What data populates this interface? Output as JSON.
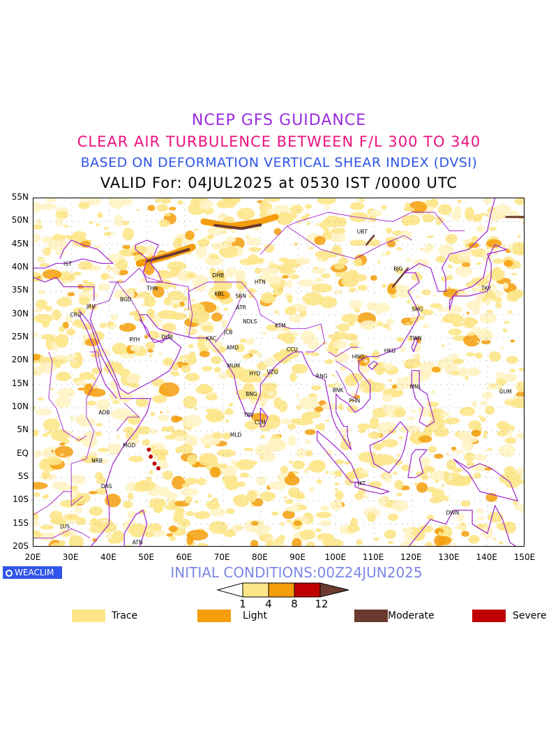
{
  "titles": {
    "line1": "NCEP GFS GUIDANCE",
    "line2": "CLEAR AIR TURBULENCE BETWEEN F/L 300 TO 340",
    "line3": "BASED ON DEFORMATION VERTICAL SHEAR INDEX (DVSI)",
    "line4": "VALID For: 04JUL2025 at 0530 IST /0000 UTC"
  },
  "map": {
    "lat_labels": [
      "55N",
      "50N",
      "45N",
      "40N",
      "35N",
      "30N",
      "25N",
      "20N",
      "15N",
      "10N",
      "5N",
      "EQ",
      "5S",
      "10S",
      "15S",
      "20S"
    ],
    "lon_labels": [
      "20E",
      "30E",
      "40E",
      "50E",
      "60E",
      "70E",
      "80E",
      "90E",
      "100E",
      "110E",
      "120E",
      "130E",
      "140E",
      "150E"
    ],
    "lat_range": [
      -20,
      55
    ],
    "lon_range": [
      20,
      150
    ],
    "grid": "dotted every 5°/10°",
    "stations": [
      {
        "code": "UBT",
        "lon": 106.9,
        "lat": 47.9
      },
      {
        "code": "BJG",
        "lon": 116.4,
        "lat": 39.9
      },
      {
        "code": "TKY",
        "lon": 139.7,
        "lat": 35.7
      },
      {
        "code": "SHG",
        "lon": 121.5,
        "lat": 31.2
      },
      {
        "code": "TWN",
        "lon": 121.0,
        "lat": 25.0
      },
      {
        "code": "HKG",
        "lon": 114.2,
        "lat": 22.3
      },
      {
        "code": "HNO",
        "lon": 105.8,
        "lat": 21.0
      },
      {
        "code": "IST",
        "lon": 29.0,
        "lat": 41.0
      },
      {
        "code": "THN",
        "lon": 51.4,
        "lat": 35.7
      },
      {
        "code": "BGD",
        "lon": 44.4,
        "lat": 33.3
      },
      {
        "code": "JRU",
        "lon": 35.2,
        "lat": 31.8
      },
      {
        "code": "CRO",
        "lon": 31.2,
        "lat": 30.0
      },
      {
        "code": "RYH",
        "lon": 46.7,
        "lat": 24.7
      },
      {
        "code": "DUB",
        "lon": 55.3,
        "lat": 25.2
      },
      {
        "code": "DHB",
        "lon": 68.8,
        "lat": 38.5
      },
      {
        "code": "HTN",
        "lon": 79.9,
        "lat": 37.1
      },
      {
        "code": "KBL",
        "lon": 69.2,
        "lat": 34.5
      },
      {
        "code": "SRN",
        "lon": 74.8,
        "lat": 34.1
      },
      {
        "code": "ATR",
        "lon": 74.9,
        "lat": 31.6
      },
      {
        "code": "JCB",
        "lon": 71.5,
        "lat": 26.3
      },
      {
        "code": "NDLS",
        "lon": 77.2,
        "lat": 28.6
      },
      {
        "code": "KTM",
        "lon": 85.3,
        "lat": 27.7
      },
      {
        "code": "KRC",
        "lon": 67.0,
        "lat": 24.9
      },
      {
        "code": "AMD",
        "lon": 72.6,
        "lat": 23.0
      },
      {
        "code": "CCU",
        "lon": 88.4,
        "lat": 22.6
      },
      {
        "code": "MUM",
        "lon": 72.9,
        "lat": 19.1
      },
      {
        "code": "HYD",
        "lon": 78.5,
        "lat": 17.4
      },
      {
        "code": "VZG",
        "lon": 83.2,
        "lat": 17.7
      },
      {
        "code": "RNG",
        "lon": 96.2,
        "lat": 16.8
      },
      {
        "code": "BNK",
        "lon": 100.5,
        "lat": 13.8
      },
      {
        "code": "PHN",
        "lon": 104.9,
        "lat": 11.6
      },
      {
        "code": "MNL",
        "lon": 121.0,
        "lat": 14.6
      },
      {
        "code": "GUM",
        "lon": 144.8,
        "lat": 13.5
      },
      {
        "code": "BNG",
        "lon": 77.6,
        "lat": 13.0
      },
      {
        "code": "TRV",
        "lon": 76.9,
        "lat": 8.5
      },
      {
        "code": "CLM",
        "lon": 79.9,
        "lat": 6.9
      },
      {
        "code": "MLD",
        "lon": 73.5,
        "lat": 4.2
      },
      {
        "code": "ADB",
        "lon": 38.7,
        "lat": 9.0
      },
      {
        "code": "MGD",
        "lon": 45.3,
        "lat": 2.0
      },
      {
        "code": "NRB",
        "lon": 36.8,
        "lat": -1.3
      },
      {
        "code": "DAS",
        "lon": 39.3,
        "lat": -6.8
      },
      {
        "code": "JKT",
        "lon": 106.8,
        "lat": -6.2
      },
      {
        "code": "DWN",
        "lon": 130.8,
        "lat": -12.5
      },
      {
        "code": "LUS",
        "lon": 28.3,
        "lat": -15.4
      },
      {
        "code": "ATN",
        "lon": 47.5,
        "lat": -18.9
      }
    ]
  },
  "colors": {
    "trace": "#fde68a",
    "light": "#f59e0b",
    "moderate": "#6b3a2e",
    "severe": "#c00000",
    "coastline": "#9b1fd0",
    "faint": "#fff3c4"
  },
  "footer": {
    "logo": "WEACLIM",
    "initial_conditions": "INITIAL CONDITIONS:00Z24JUN2025"
  },
  "colorbar": {
    "ticks": [
      "1",
      "4",
      "8",
      "12"
    ]
  },
  "legend": [
    {
      "label": "Trace",
      "color": "#fde68a"
    },
    {
      "label": "Light",
      "color": "#f59e0b"
    },
    {
      "label": "Moderate",
      "color": "#6b3a2e"
    },
    {
      "label": "Severe",
      "color": "#c00000"
    }
  ]
}
